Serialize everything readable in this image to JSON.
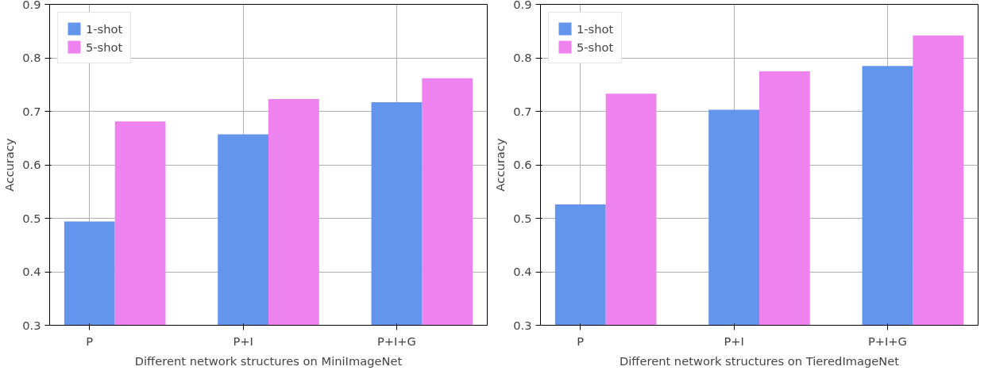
{
  "chart_data": [
    {
      "type": "bar",
      "categories": [
        "P",
        "P+I",
        "P+I+G"
      ],
      "xlabel": "Different network structures on MiniImageNet",
      "ylabel": "Accuracy",
      "ylim": [
        0.3,
        0.9
      ],
      "yticks": [
        0.3,
        0.4,
        0.5,
        0.6,
        0.7,
        0.8,
        0.9
      ],
      "grid": true,
      "legend": "top left",
      "series": [
        {
          "name": "1-shot",
          "color": "#6495ed",
          "values": [
            0.494,
            0.657,
            0.717
          ]
        },
        {
          "name": "5-shot",
          "color": "#ee82ee",
          "values": [
            0.681,
            0.723,
            0.762
          ]
        }
      ]
    },
    {
      "type": "bar",
      "categories": [
        "P",
        "P+I",
        "P+I+G"
      ],
      "xlabel": "Different network structures on TieredImageNet",
      "ylabel": "Accuracy",
      "ylim": [
        0.3,
        0.9
      ],
      "yticks": [
        0.3,
        0.4,
        0.5,
        0.6,
        0.7,
        0.8,
        0.9
      ],
      "grid": true,
      "legend": "top left",
      "series": [
        {
          "name": "1-shot",
          "color": "#6495ed",
          "values": [
            0.526,
            0.703,
            0.785
          ]
        },
        {
          "name": "5-shot",
          "color": "#ee82ee",
          "values": [
            0.733,
            0.775,
            0.842
          ]
        }
      ]
    }
  ]
}
